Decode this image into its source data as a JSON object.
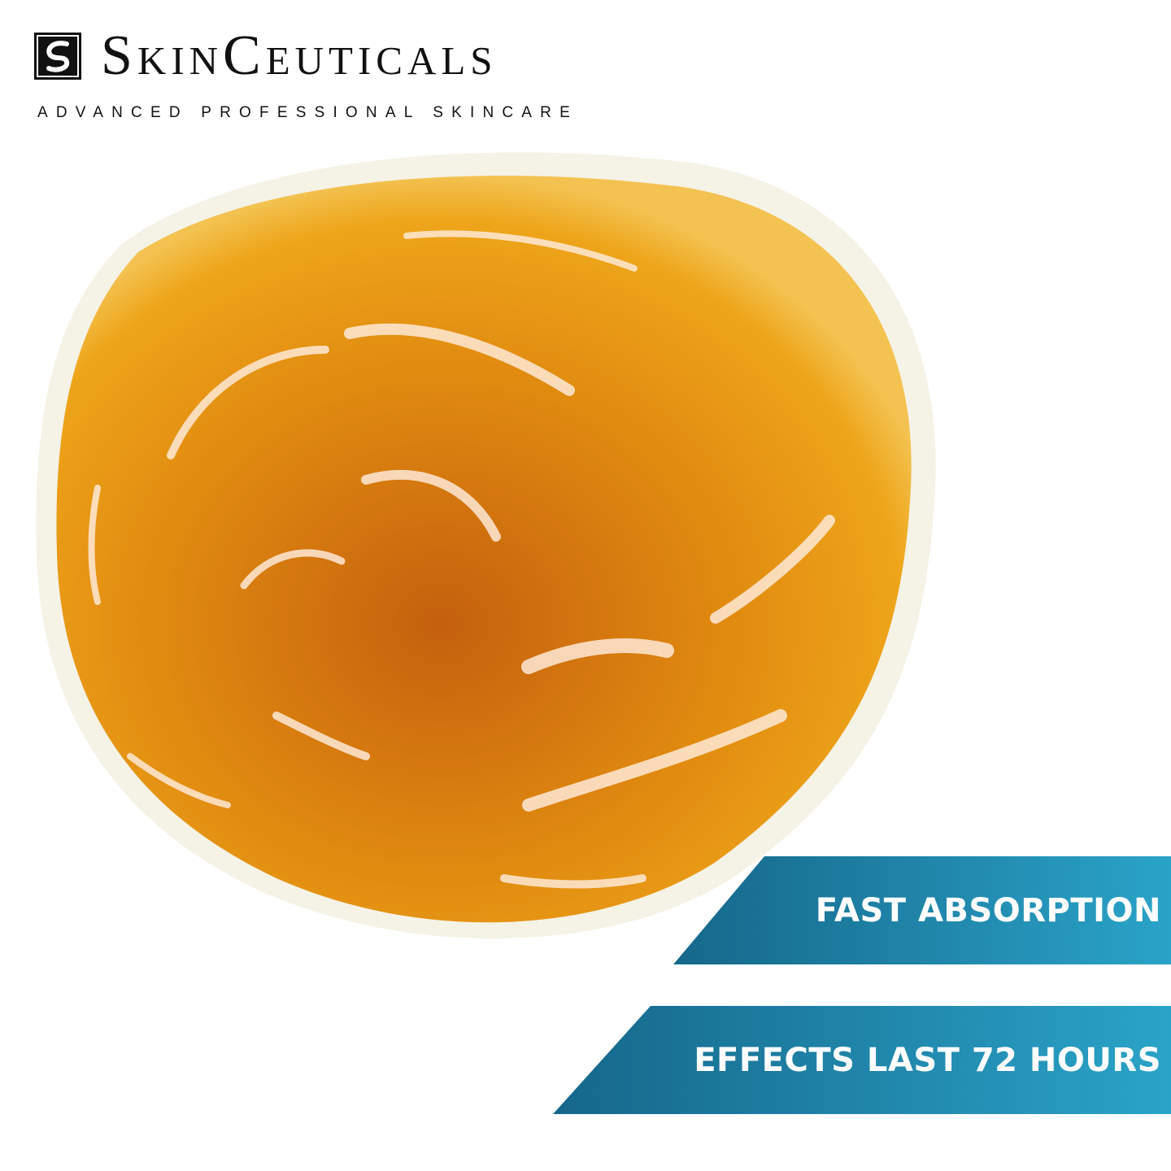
{
  "brand": {
    "name": "SkinCeuticals",
    "tagline": "ADVANCED PROFESSIONAL SKINCARE",
    "logo_icon": "s-swirl-logo-icon"
  },
  "banners": [
    {
      "label": "FAST ABSORPTION"
    },
    {
      "label": "EFFECTS LAST 72 HOURS"
    }
  ],
  "colors": {
    "banner_dark": "#15678a",
    "banner_light": "#2aa3c8",
    "gel_orange": "#e8960c"
  }
}
